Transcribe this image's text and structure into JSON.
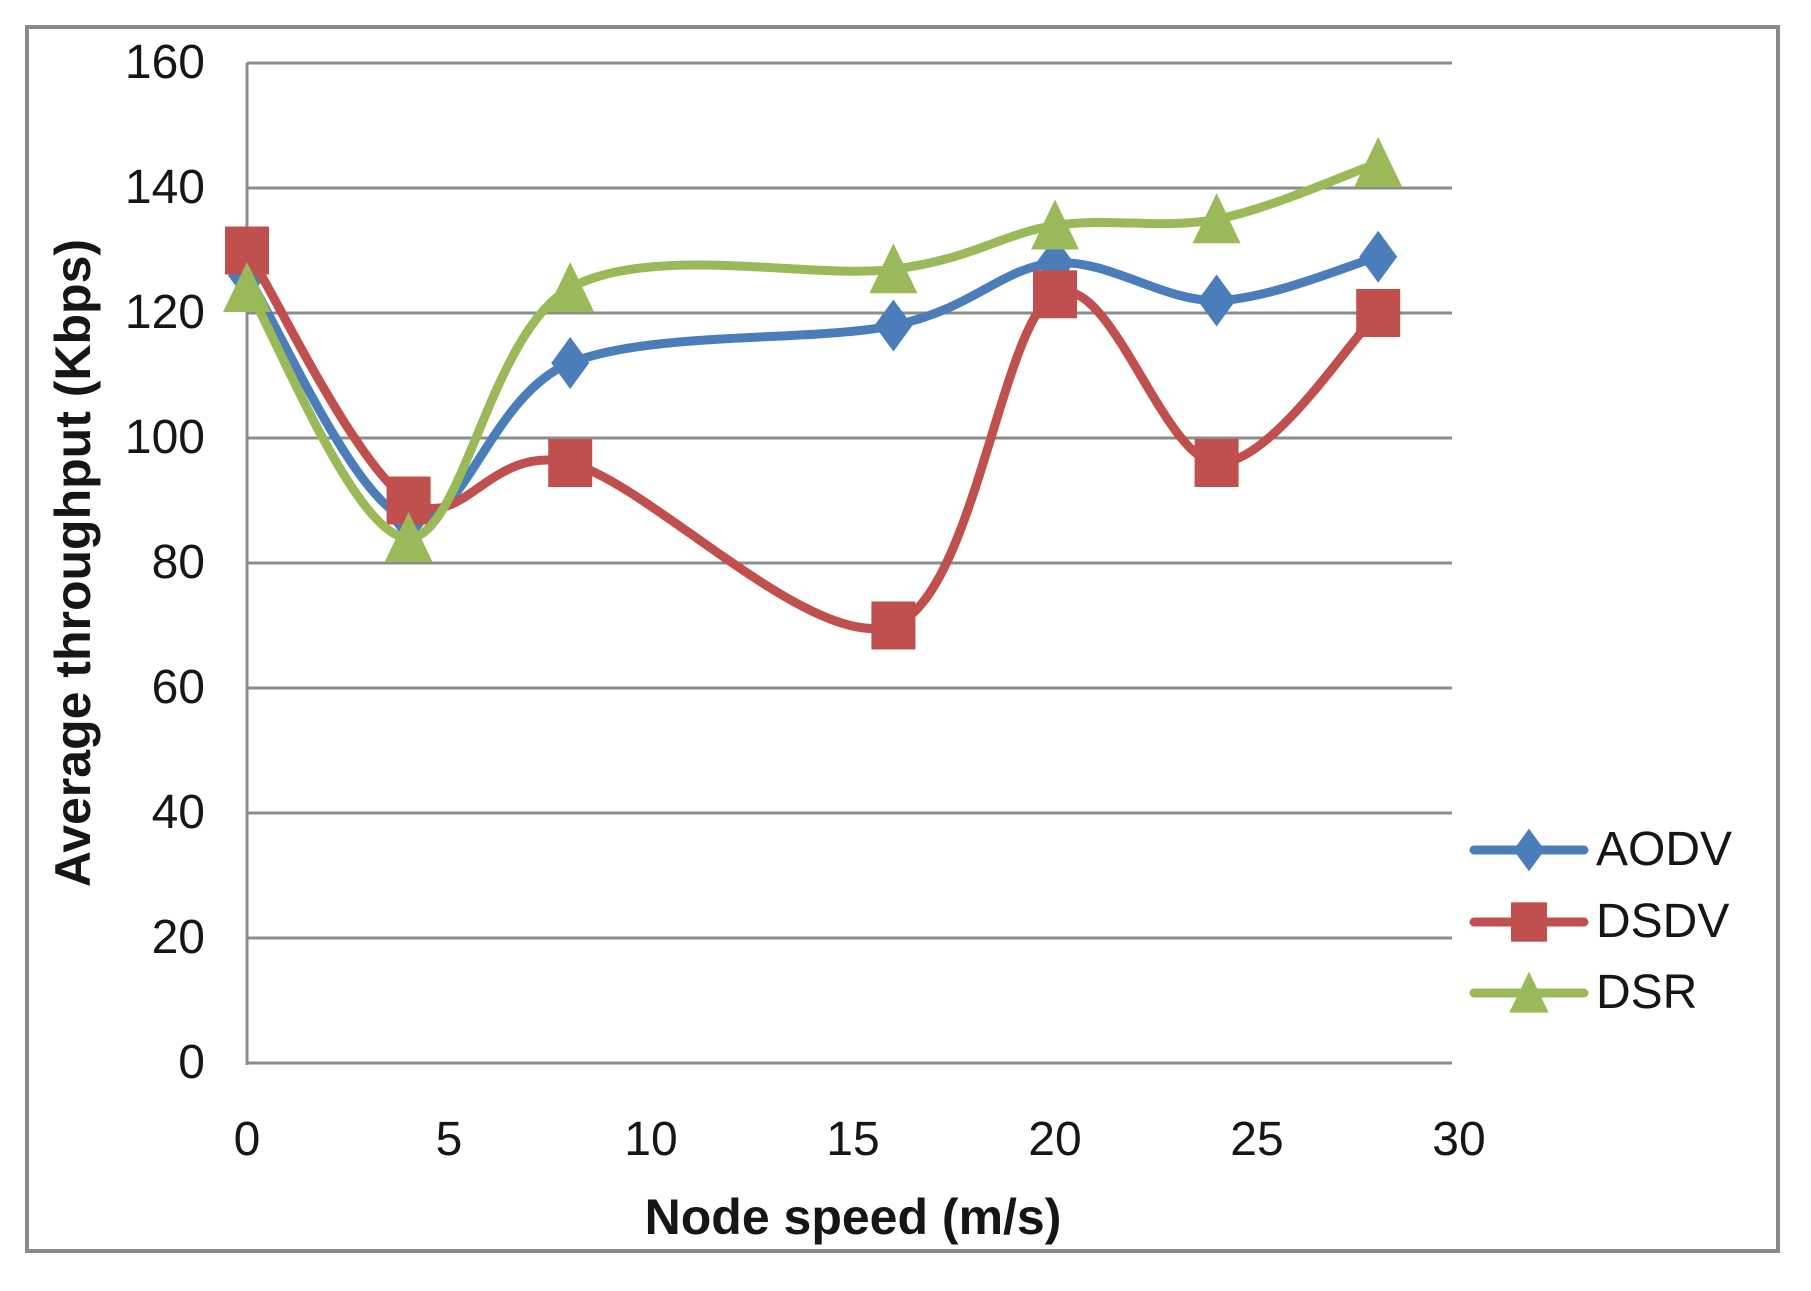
{
  "chart_data": {
    "type": "line",
    "title": "",
    "xlabel": "Node speed (m/s)",
    "ylabel": "Average throughput (Kbps)",
    "x": [
      0,
      4,
      8,
      16,
      20,
      24,
      28
    ],
    "series": [
      {
        "name": "AODV",
        "color": "#4a7db9",
        "marker": "diamond",
        "values": [
          126,
          87,
          112,
          118,
          128,
          122,
          129
        ]
      },
      {
        "name": "DSDV",
        "color": "#c0504d",
        "marker": "square",
        "values": [
          130,
          90,
          96,
          70,
          123,
          96,
          120
        ]
      },
      {
        "name": "DSR",
        "color": "#9aba59",
        "marker": "triangle",
        "values": [
          124,
          84,
          124,
          127,
          134,
          135,
          144
        ]
      }
    ],
    "xlim": [
      0,
      30
    ],
    "ylim": [
      0,
      160
    ],
    "x_ticks": [
      0,
      5,
      10,
      15,
      20,
      25,
      30
    ],
    "y_ticks": [
      160,
      140,
      120,
      100,
      80,
      60,
      40,
      20,
      0
    ],
    "grid": "horizontal",
    "smoothed": true,
    "legend_position": "right-inside",
    "gridline_color": "#8c8c8c",
    "axis_line_color": "#8c8c8c",
    "frame_color": "#8a8a8a",
    "text_color": "#161616"
  }
}
